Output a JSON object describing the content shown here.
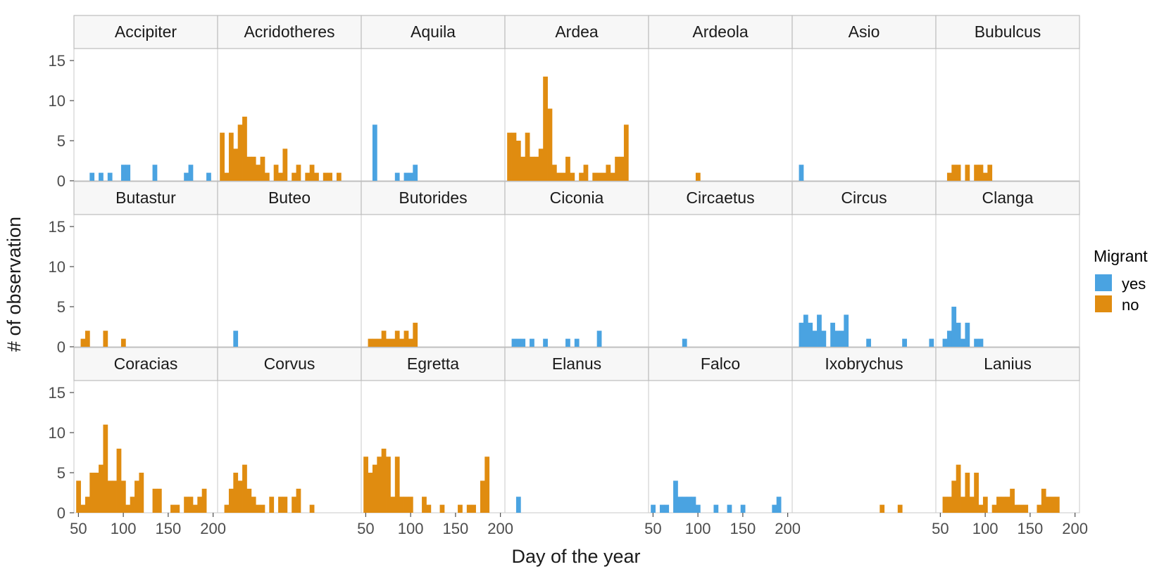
{
  "chart_data": {
    "type": "bar",
    "xlabel": "Day of the year",
    "ylabel": "# of observation",
    "xlim": [
      45,
      205
    ],
    "ylim": [
      0,
      16.5
    ],
    "x_ticks": [
      50,
      100,
      150,
      200
    ],
    "y_ticks": [
      0,
      5,
      10,
      15
    ],
    "bin_width": 5,
    "grid": false,
    "legend": {
      "title": "Migrant",
      "position": "right",
      "items": [
        {
          "label": "yes",
          "color": "#4AA3E1"
        },
        {
          "label": "no",
          "color": "#E08C10"
        }
      ]
    },
    "facets": [
      {
        "name": "Accipiter",
        "migrant": "yes",
        "bins": [
          [
            65,
            1
          ],
          [
            75,
            1
          ],
          [
            85,
            1
          ],
          [
            100,
            2
          ],
          [
            105,
            2
          ],
          [
            135,
            2
          ],
          [
            170,
            1
          ],
          [
            175,
            2
          ],
          [
            195,
            1
          ]
        ]
      },
      {
        "name": "Acridotheres",
        "migrant": "no",
        "bins": [
          [
            50,
            6
          ],
          [
            55,
            1
          ],
          [
            60,
            6
          ],
          [
            65,
            4
          ],
          [
            70,
            7
          ],
          [
            75,
            8
          ],
          [
            80,
            3
          ],
          [
            85,
            3
          ],
          [
            90,
            2
          ],
          [
            95,
            3
          ],
          [
            100,
            1
          ],
          [
            110,
            2
          ],
          [
            115,
            1
          ],
          [
            120,
            4
          ],
          [
            130,
            1
          ],
          [
            135,
            2
          ],
          [
            145,
            1
          ],
          [
            150,
            2
          ],
          [
            155,
            1
          ],
          [
            165,
            1
          ],
          [
            170,
            1
          ],
          [
            180,
            1
          ]
        ]
      },
      {
        "name": "Aquila",
        "migrant": "yes",
        "bins": [
          [
            60,
            7
          ],
          [
            85,
            1
          ],
          [
            95,
            1
          ],
          [
            100,
            1
          ],
          [
            105,
            2
          ]
        ]
      },
      {
        "name": "Ardea",
        "migrant": "no",
        "bins": [
          [
            50,
            6
          ],
          [
            55,
            6
          ],
          [
            60,
            5
          ],
          [
            65,
            3
          ],
          [
            70,
            6
          ],
          [
            75,
            3
          ],
          [
            80,
            3
          ],
          [
            85,
            4
          ],
          [
            90,
            13
          ],
          [
            95,
            9
          ],
          [
            100,
            2
          ],
          [
            105,
            1
          ],
          [
            110,
            1
          ],
          [
            115,
            3
          ],
          [
            120,
            1
          ],
          [
            130,
            1
          ],
          [
            135,
            2
          ],
          [
            145,
            1
          ],
          [
            150,
            1
          ],
          [
            155,
            1
          ],
          [
            160,
            2
          ],
          [
            165,
            1
          ],
          [
            170,
            3
          ],
          [
            175,
            3
          ],
          [
            180,
            7
          ]
        ]
      },
      {
        "name": "Ardeola",
        "migrant": "no",
        "bins": [
          [
            100,
            1
          ]
        ]
      },
      {
        "name": "Asio",
        "migrant": "yes",
        "bins": [
          [
            55,
            2
          ]
        ]
      },
      {
        "name": "Bubulcus",
        "migrant": "no",
        "bins": [
          [
            60,
            1
          ],
          [
            65,
            2
          ],
          [
            70,
            2
          ],
          [
            80,
            2
          ],
          [
            90,
            2
          ],
          [
            95,
            2
          ],
          [
            100,
            1
          ],
          [
            105,
            2
          ]
        ]
      },
      {
        "name": "Butastur",
        "migrant": "no",
        "bins": [
          [
            55,
            1
          ],
          [
            60,
            2
          ],
          [
            80,
            2
          ],
          [
            100,
            1
          ]
        ]
      },
      {
        "name": "Buteo",
        "migrant": "yes",
        "bins": [
          [
            65,
            2
          ]
        ]
      },
      {
        "name": "Butorides",
        "migrant": "no",
        "bins": [
          [
            55,
            1
          ],
          [
            60,
            1
          ],
          [
            65,
            1
          ],
          [
            70,
            2
          ],
          [
            75,
            1
          ],
          [
            80,
            1
          ],
          [
            85,
            2
          ],
          [
            90,
            1
          ],
          [
            95,
            2
          ],
          [
            100,
            1
          ],
          [
            105,
            3
          ]
        ]
      },
      {
        "name": "Ciconia",
        "migrant": "yes",
        "bins": [
          [
            55,
            1
          ],
          [
            60,
            1
          ],
          [
            65,
            1
          ],
          [
            75,
            1
          ],
          [
            90,
            1
          ],
          [
            115,
            1
          ],
          [
            125,
            1
          ],
          [
            150,
            2
          ]
        ]
      },
      {
        "name": "Circaetus",
        "migrant": "yes",
        "bins": [
          [
            85,
            1
          ]
        ]
      },
      {
        "name": "Circus",
        "migrant": "yes",
        "bins": [
          [
            55,
            3
          ],
          [
            60,
            4
          ],
          [
            65,
            3
          ],
          [
            70,
            2
          ],
          [
            75,
            4
          ],
          [
            80,
            2
          ],
          [
            90,
            3
          ],
          [
            95,
            2
          ],
          [
            100,
            2
          ],
          [
            105,
            4
          ],
          [
            130,
            1
          ],
          [
            170,
            1
          ],
          [
            200,
            1
          ]
        ]
      },
      {
        "name": "Clanga",
        "migrant": "yes",
        "bins": [
          [
            55,
            1
          ],
          [
            60,
            2
          ],
          [
            65,
            5
          ],
          [
            70,
            3
          ],
          [
            75,
            1
          ],
          [
            80,
            3
          ],
          [
            90,
            1
          ],
          [
            95,
            1
          ]
        ]
      },
      {
        "name": "Coracias",
        "migrant": "no",
        "bins": [
          [
            50,
            4
          ],
          [
            55,
            1
          ],
          [
            60,
            2
          ],
          [
            65,
            5
          ],
          [
            70,
            5
          ],
          [
            75,
            6
          ],
          [
            80,
            11
          ],
          [
            85,
            4
          ],
          [
            90,
            4
          ],
          [
            95,
            8
          ],
          [
            100,
            4
          ],
          [
            105,
            1
          ],
          [
            110,
            2
          ],
          [
            115,
            4
          ],
          [
            120,
            5
          ],
          [
            135,
            3
          ],
          [
            140,
            3
          ],
          [
            155,
            1
          ],
          [
            160,
            1
          ],
          [
            170,
            2
          ],
          [
            175,
            2
          ],
          [
            180,
            1
          ],
          [
            185,
            2
          ],
          [
            190,
            3
          ]
        ]
      },
      {
        "name": "Corvus",
        "migrant": "no",
        "bins": [
          [
            55,
            1
          ],
          [
            60,
            3
          ],
          [
            65,
            5
          ],
          [
            70,
            4
          ],
          [
            75,
            6
          ],
          [
            80,
            3
          ],
          [
            85,
            2
          ],
          [
            90,
            1
          ],
          [
            95,
            1
          ],
          [
            105,
            2
          ],
          [
            115,
            2
          ],
          [
            120,
            2
          ],
          [
            130,
            2
          ],
          [
            135,
            3
          ],
          [
            150,
            1
          ]
        ]
      },
      {
        "name": "Egretta",
        "migrant": "no",
        "bins": [
          [
            50,
            7
          ],
          [
            55,
            5
          ],
          [
            60,
            6
          ],
          [
            65,
            7
          ],
          [
            70,
            8
          ],
          [
            75,
            7
          ],
          [
            80,
            2
          ],
          [
            85,
            7
          ],
          [
            90,
            2
          ],
          [
            95,
            2
          ],
          [
            100,
            2
          ],
          [
            115,
            2
          ],
          [
            120,
            1
          ],
          [
            135,
            1
          ],
          [
            155,
            1
          ],
          [
            165,
            1
          ],
          [
            170,
            1
          ],
          [
            180,
            4
          ],
          [
            185,
            7
          ]
        ]
      },
      {
        "name": "Elanus",
        "migrant": "yes",
        "bins": [
          [
            60,
            2
          ]
        ]
      },
      {
        "name": "Falco",
        "migrant": "yes",
        "bins": [
          [
            50,
            1
          ],
          [
            60,
            1
          ],
          [
            65,
            1
          ],
          [
            75,
            4
          ],
          [
            80,
            2
          ],
          [
            85,
            2
          ],
          [
            90,
            2
          ],
          [
            95,
            2
          ],
          [
            100,
            1
          ],
          [
            120,
            1
          ],
          [
            135,
            1
          ],
          [
            150,
            1
          ],
          [
            185,
            1
          ],
          [
            190,
            2
          ]
        ]
      },
      {
        "name": "Ixobrychus",
        "migrant": "no",
        "bins": [
          [
            145,
            1
          ],
          [
            165,
            1
          ]
        ]
      },
      {
        "name": "Lanius",
        "migrant": "no",
        "bins": [
          [
            55,
            2
          ],
          [
            60,
            2
          ],
          [
            65,
            4
          ],
          [
            70,
            6
          ],
          [
            75,
            2
          ],
          [
            80,
            5
          ],
          [
            85,
            2
          ],
          [
            90,
            5
          ],
          [
            95,
            1
          ],
          [
            100,
            2
          ],
          [
            110,
            1
          ],
          [
            115,
            2
          ],
          [
            120,
            2
          ],
          [
            125,
            2
          ],
          [
            130,
            3
          ],
          [
            135,
            1
          ],
          [
            140,
            1
          ],
          [
            145,
            1
          ],
          [
            160,
            1
          ],
          [
            165,
            3
          ],
          [
            170,
            2
          ],
          [
            175,
            2
          ],
          [
            180,
            2
          ]
        ]
      }
    ]
  }
}
